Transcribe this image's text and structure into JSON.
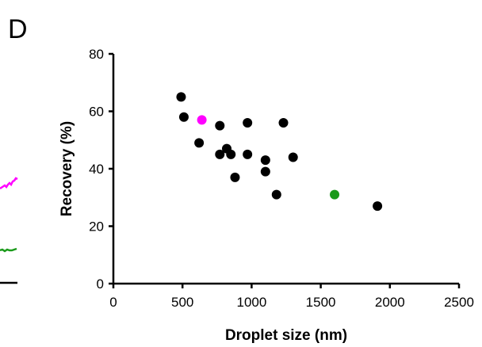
{
  "panel_label": "D",
  "chart_data": {
    "type": "scatter",
    "xlabel": "Droplet size (nm)",
    "ylabel": "Recovery (%)",
    "xlim": [
      0,
      2500
    ],
    "ylim": [
      0,
      80
    ],
    "xticks": [
      "0",
      "500",
      "1000",
      "1500",
      "2000",
      "2500"
    ],
    "yticks": [
      "0",
      "20",
      "40",
      "60",
      "80"
    ],
    "grid": false,
    "points": [
      {
        "x": 490,
        "y": 65,
        "color": "#000000"
      },
      {
        "x": 510,
        "y": 58,
        "color": "#000000"
      },
      {
        "x": 640,
        "y": 57,
        "color": "#ff00ff"
      },
      {
        "x": 620,
        "y": 49,
        "color": "#000000"
      },
      {
        "x": 770,
        "y": 55,
        "color": "#000000"
      },
      {
        "x": 770,
        "y": 45,
        "color": "#000000"
      },
      {
        "x": 820,
        "y": 47,
        "color": "#000000"
      },
      {
        "x": 850,
        "y": 45,
        "color": "#000000"
      },
      {
        "x": 880,
        "y": 37,
        "color": "#000000"
      },
      {
        "x": 970,
        "y": 56,
        "color": "#000000"
      },
      {
        "x": 970,
        "y": 45,
        "color": "#000000"
      },
      {
        "x": 1100,
        "y": 43,
        "color": "#000000"
      },
      {
        "x": 1100,
        "y": 39,
        "color": "#000000"
      },
      {
        "x": 1180,
        "y": 31,
        "color": "#000000"
      },
      {
        "x": 1230,
        "y": 56,
        "color": "#000000"
      },
      {
        "x": 1300,
        "y": 44,
        "color": "#000000"
      },
      {
        "x": 1600,
        "y": 31,
        "color": "#1a9a1a"
      },
      {
        "x": 1910,
        "y": 27,
        "color": "#000000"
      }
    ]
  },
  "left_panel_fragment": {
    "magenta_color": "#ff00ff",
    "green_color": "#1a9a1a"
  }
}
